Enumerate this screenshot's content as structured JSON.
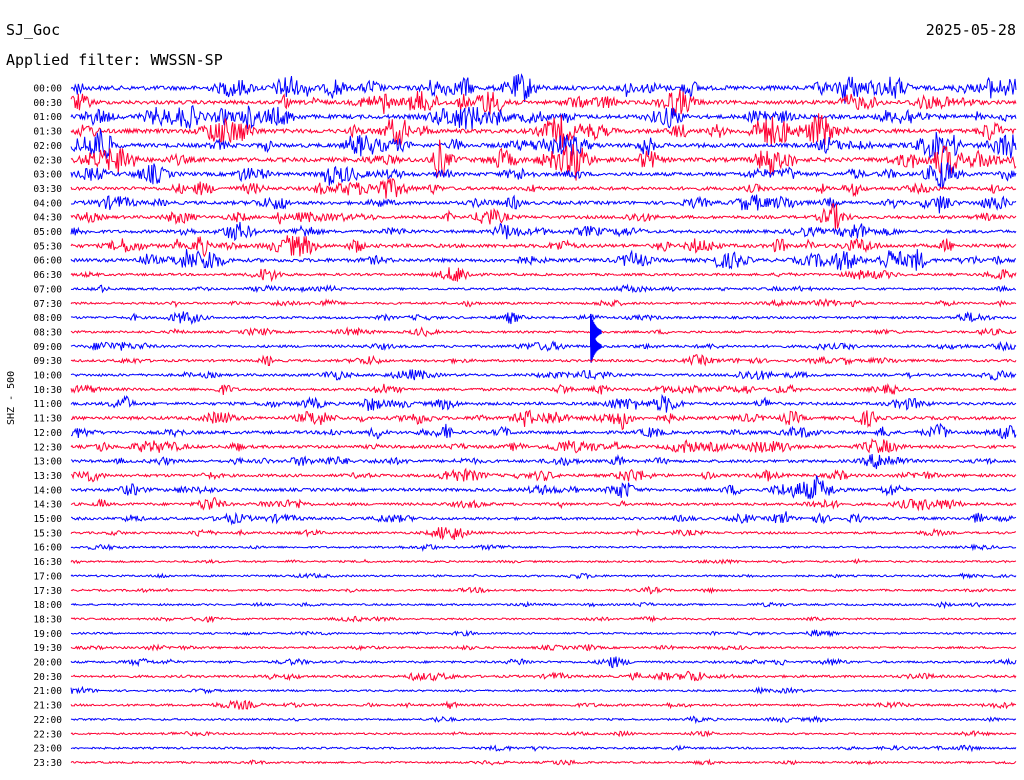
{
  "header": {
    "station": "SJ_Goc",
    "date": "2025-05-28",
    "filter": "Applied filter: WWSSN-SP"
  },
  "channel_label": "SHZ - 500",
  "chart_data": {
    "type": "line",
    "title": "SJ_Goc",
    "subtitle": "Applied filter: WWSSN-SP",
    "ylabel": "SHZ - 500",
    "date": "2025-05-28",
    "rows": [
      {
        "label": "00:00",
        "color": "#0000ff",
        "activity": 0.95
      },
      {
        "label": "00:30",
        "color": "#ff0033",
        "activity": 0.75
      },
      {
        "label": "01:00",
        "color": "#0000ff",
        "activity": 0.85
      },
      {
        "label": "01:30",
        "color": "#ff0033",
        "activity": 0.9
      },
      {
        "label": "02:00",
        "color": "#0000ff",
        "activity": 0.85
      },
      {
        "label": "02:30",
        "color": "#ff0033",
        "activity": 0.9
      },
      {
        "label": "03:00",
        "color": "#0000ff",
        "activity": 0.7
      },
      {
        "label": "03:30",
        "color": "#ff0033",
        "activity": 0.65
      },
      {
        "label": "04:00",
        "color": "#0000ff",
        "activity": 0.65
      },
      {
        "label": "04:30",
        "color": "#ff0033",
        "activity": 0.55
      },
      {
        "label": "05:00",
        "color": "#0000ff",
        "activity": 0.55
      },
      {
        "label": "05:30",
        "color": "#ff0033",
        "activity": 0.7
      },
      {
        "label": "06:00",
        "color": "#0000ff",
        "activity": 0.7
      },
      {
        "label": "06:30",
        "color": "#ff0033",
        "activity": 0.35
      },
      {
        "label": "07:00",
        "color": "#0000ff",
        "activity": 0.3
      },
      {
        "label": "07:30",
        "color": "#ff0033",
        "activity": 0.3
      },
      {
        "label": "08:00",
        "color": "#0000ff",
        "activity": 0.35
      },
      {
        "label": "08:30",
        "color": "#ff0033",
        "activity": 0.3
      },
      {
        "label": "09:00",
        "color": "#0000ff",
        "activity": 0.4
      },
      {
        "label": "09:30",
        "color": "#ff0033",
        "activity": 0.35
      },
      {
        "label": "10:00",
        "color": "#0000ff",
        "activity": 0.4
      },
      {
        "label": "10:30",
        "color": "#ff0033",
        "activity": 0.45
      },
      {
        "label": "11:00",
        "color": "#0000ff",
        "activity": 0.5
      },
      {
        "label": "11:30",
        "color": "#ff0033",
        "activity": 0.6
      },
      {
        "label": "12:00",
        "color": "#0000ff",
        "activity": 0.55
      },
      {
        "label": "12:30",
        "color": "#ff0033",
        "activity": 0.55
      },
      {
        "label": "13:00",
        "color": "#0000ff",
        "activity": 0.5
      },
      {
        "label": "13:30",
        "color": "#ff0033",
        "activity": 0.5
      },
      {
        "label": "14:00",
        "color": "#0000ff",
        "activity": 0.55
      },
      {
        "label": "14:30",
        "color": "#ff0033",
        "activity": 0.45
      },
      {
        "label": "15:00",
        "color": "#0000ff",
        "activity": 0.45
      },
      {
        "label": "15:30",
        "color": "#ff0033",
        "activity": 0.3
      },
      {
        "label": "16:00",
        "color": "#0000ff",
        "activity": 0.2
      },
      {
        "label": "16:30",
        "color": "#ff0033",
        "activity": 0.2
      },
      {
        "label": "17:00",
        "color": "#0000ff",
        "activity": 0.2
      },
      {
        "label": "17:30",
        "color": "#ff0033",
        "activity": 0.2
      },
      {
        "label": "18:00",
        "color": "#0000ff",
        "activity": 0.2
      },
      {
        "label": "18:30",
        "color": "#ff0033",
        "activity": 0.2
      },
      {
        "label": "19:00",
        "color": "#0000ff",
        "activity": 0.2
      },
      {
        "label": "19:30",
        "color": "#ff0033",
        "activity": 0.25
      },
      {
        "label": "20:00",
        "color": "#0000ff",
        "activity": 0.3
      },
      {
        "label": "20:30",
        "color": "#ff0033",
        "activity": 0.35
      },
      {
        "label": "21:00",
        "color": "#0000ff",
        "activity": 0.2
      },
      {
        "label": "21:30",
        "color": "#ff0033",
        "activity": 0.3
      },
      {
        "label": "22:00",
        "color": "#0000ff",
        "activity": 0.2
      },
      {
        "label": "22:30",
        "color": "#ff0033",
        "activity": 0.2
      },
      {
        "label": "23:00",
        "color": "#0000ff",
        "activity": 0.2
      },
      {
        "label": "23:30",
        "color": "#ff0033",
        "activity": 0.2
      }
    ],
    "events": [
      {
        "row": "08:30",
        "minute": 16.5,
        "peak": 1.0
      },
      {
        "row": "09:00",
        "minute": 16.5,
        "peak": 1.0
      }
    ]
  }
}
